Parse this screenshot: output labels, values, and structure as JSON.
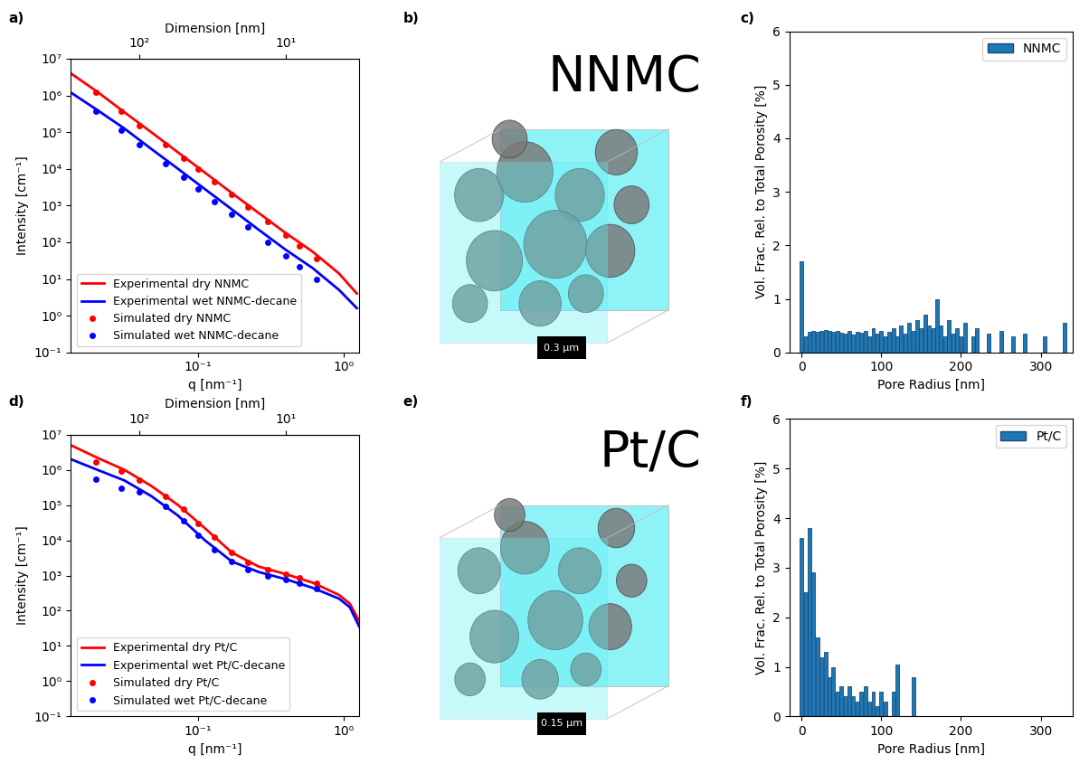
{
  "chart_data": [
    {
      "panel_label": "a)",
      "type": "line",
      "log": true,
      "xlabel": "q [nm⁻¹]",
      "ylabel": "Intensity [cm⁻¹]",
      "xlim": [
        0.0135,
        1.28
      ],
      "ylim": [
        0.1,
        10000000
      ],
      "xticks": [
        {
          "value": 0.1,
          "label": "10⁻¹"
        },
        {
          "value": 1,
          "label": "10⁰"
        }
      ],
      "yticks": [
        {
          "value": 0.1,
          "label": "10⁻¹"
        },
        {
          "value": 1,
          "label": "10⁰"
        },
        {
          "value": 10,
          "label": "10¹"
        },
        {
          "value": 100,
          "label": "10²"
        },
        {
          "value": 1000,
          "label": "10³"
        },
        {
          "value": 10000,
          "label": "10⁴"
        },
        {
          "value": 100000,
          "label": "10⁵"
        },
        {
          "value": 1000000,
          "label": "10⁶"
        },
        {
          "value": 10000000,
          "label": "10⁷"
        }
      ],
      "top_axis": {
        "label": "Dimension [nm]",
        "q_times_dimension": 4.0,
        "ticks": [
          {
            "value": 100,
            "label": "10²"
          },
          {
            "value": 10,
            "label": "10¹"
          }
        ]
      },
      "legend": "lower left",
      "series": [
        {
          "name": "Experimental dry NNMC",
          "type": "line",
          "color": "red",
          "x": [
            0.0135,
            0.0205,
            0.0314,
            0.048,
            0.0733,
            0.112,
            0.171,
            0.261,
            0.399,
            0.61,
            0.93,
            1.23
          ],
          "values": [
            4000000,
            1260000,
            350000,
            100000,
            28000,
            7900,
            2200,
            630,
            180,
            56,
            14,
            4.0
          ]
        },
        {
          "name": "Experimental wet NNMC-decane",
          "type": "line",
          "color": "blue",
          "x": [
            0.0135,
            0.0205,
            0.0314,
            0.048,
            0.0733,
            0.112,
            0.171,
            0.261,
            0.399,
            0.61,
            0.93,
            1.23
          ],
          "values": [
            1200000,
            400000,
            126000,
            35000,
            10000,
            2800,
            790,
            220,
            63,
            20,
            5.0,
            1.6
          ]
        },
        {
          "name": "Simulated dry NNMC",
          "type": "scatter",
          "color": "red",
          "marker": "o",
          "x": [
            0.02,
            0.03,
            0.04,
            0.06,
            0.08,
            0.1,
            0.13,
            0.17,
            0.22,
            0.3,
            0.4,
            0.5,
            0.65
          ],
          "values": [
            1230000,
            370000,
            150000,
            46000,
            19000,
            9800,
            4500,
            2000,
            920,
            365,
            154,
            79,
            36
          ]
        },
        {
          "name": "Simulated wet NNMC-decane",
          "type": "scatter",
          "color": "blue",
          "marker": "o",
          "x": [
            0.02,
            0.03,
            0.04,
            0.06,
            0.08,
            0.1,
            0.13,
            0.17,
            0.22,
            0.3,
            0.4,
            0.5,
            0.65
          ],
          "values": [
            370000,
            115000,
            46000,
            14000,
            5800,
            2900,
            1300,
            580,
            260,
            100,
            42,
            21,
            9.5
          ]
        }
      ]
    },
    {
      "panel_label": "b)",
      "type": "render",
      "title": "NNMC",
      "scale_bar": "0.3 µm"
    },
    {
      "panel_label": "c)",
      "type": "bar",
      "xlabel": "Pore Radius [nm]",
      "ylabel": "Vol. Frac. Rel. to Total Porosity [%]",
      "xlim": [
        -15,
        340
      ],
      "ylim": [
        0,
        6
      ],
      "xticks": [
        0,
        100,
        200,
        300
      ],
      "yticks": [
        0,
        1,
        2,
        3,
        4,
        5,
        6
      ],
      "legend": "upper right",
      "series": [
        {
          "name": "NNMC",
          "color": "#1f77b4",
          "x": [
            0,
            5,
            10,
            15,
            20,
            25,
            30,
            35,
            40,
            45,
            50,
            55,
            60,
            65,
            70,
            75,
            80,
            85,
            90,
            95,
            100,
            105,
            110,
            115,
            120,
            125,
            130,
            135,
            140,
            145,
            150,
            155,
            160,
            165,
            170,
            175,
            180,
            185,
            190,
            195,
            200,
            205,
            210,
            215,
            220,
            225,
            230,
            235,
            240,
            245,
            250,
            255,
            260,
            265,
            270,
            275,
            280,
            285,
            290,
            295,
            300,
            305,
            310,
            315,
            320,
            325,
            330,
            335
          ],
          "values": [
            1.7,
            0.3,
            0.38,
            0.4,
            0.38,
            0.4,
            0.42,
            0.4,
            0.38,
            0.4,
            0.37,
            0.35,
            0.4,
            0.33,
            0.38,
            0.36,
            0.4,
            0.3,
            0.45,
            0.35,
            0.4,
            0.3,
            0.38,
            0.45,
            0.3,
            0.5,
            0.35,
            0.55,
            0.4,
            0.6,
            0.45,
            0.7,
            0.5,
            0.45,
            1.0,
            0.5,
            0.3,
            0.6,
            0.35,
            0.45,
            0.3,
            0.55,
            0,
            0.3,
            0.45,
            0,
            0,
            0.35,
            0,
            0,
            0.4,
            0,
            0,
            0.3,
            0,
            0,
            0.35,
            0,
            0,
            0,
            0,
            0.3,
            0,
            0,
            0,
            0,
            0.55,
            0
          ]
        }
      ]
    },
    {
      "panel_label": "d)",
      "type": "line",
      "log": true,
      "xlabel": "q [nm⁻¹]",
      "ylabel": "Intensity [cm⁻¹]",
      "xlim": [
        0.0135,
        1.28
      ],
      "ylim": [
        0.1,
        10000000
      ],
      "xticks": [
        {
          "value": 0.1,
          "label": "10⁻¹"
        },
        {
          "value": 1,
          "label": "10⁰"
        }
      ],
      "yticks": [
        {
          "value": 0.1,
          "label": "10⁻¹"
        },
        {
          "value": 1,
          "label": "10⁰"
        },
        {
          "value": 10,
          "label": "10¹"
        },
        {
          "value": 100,
          "label": "10²"
        },
        {
          "value": 1000,
          "label": "10³"
        },
        {
          "value": 10000,
          "label": "10⁴"
        },
        {
          "value": 100000,
          "label": "10⁵"
        },
        {
          "value": 1000000,
          "label": "10⁶"
        },
        {
          "value": 10000000,
          "label": "10⁷"
        }
      ],
      "top_axis": {
        "label": "Dimension [nm]",
        "q_times_dimension": 4.0,
        "ticks": [
          {
            "value": 100,
            "label": "10²"
          },
          {
            "value": 10,
            "label": "10¹"
          }
        ]
      },
      "legend": "lower left",
      "series": [
        {
          "name": "Experimental dry Pt/C",
          "type": "line",
          "color": "red",
          "x": [
            0.0135,
            0.0205,
            0.0314,
            0.048,
            0.0733,
            0.112,
            0.171,
            0.261,
            0.399,
            0.61,
            0.93,
            1.1,
            1.28
          ],
          "values": [
            5000000,
            2200000,
            1000000,
            350000,
            100000,
            22000,
            4500,
            1800,
            1100,
            630,
            280,
            160,
            50
          ]
        },
        {
          "name": "Experimental wet Pt/C-decane",
          "type": "line",
          "color": "blue",
          "x": [
            0.0135,
            0.0205,
            0.0314,
            0.048,
            0.0733,
            0.112,
            0.171,
            0.261,
            0.399,
            0.61,
            0.93,
            1.1,
            1.28
          ],
          "values": [
            2000000,
            1000000,
            500000,
            180000,
            50000,
            10000,
            2500,
            1260,
            790,
            450,
            220,
            126,
            35
          ]
        },
        {
          "name": "Simulated dry Pt/C",
          "type": "scatter",
          "color": "red",
          "marker": "o",
          "x": [
            0.02,
            0.03,
            0.04,
            0.06,
            0.08,
            0.1,
            0.13,
            0.17,
            0.22,
            0.3,
            0.4,
            0.5,
            0.65
          ],
          "values": [
            1700000,
            900000,
            520000,
            180000,
            75000,
            30000,
            12000,
            4500,
            2400,
            1500,
            1100,
            850,
            600
          ]
        },
        {
          "name": "Simulated wet Pt/C-decane",
          "type": "scatter",
          "color": "blue",
          "marker": "o",
          "x": [
            0.02,
            0.03,
            0.04,
            0.06,
            0.08,
            0.1,
            0.13,
            0.17,
            0.22,
            0.3,
            0.4,
            0.5,
            0.65
          ],
          "values": [
            550000,
            300000,
            230000,
            90000,
            35000,
            14000,
            5500,
            2500,
            1500,
            1000,
            780,
            600,
            420
          ]
        }
      ]
    },
    {
      "panel_label": "e)",
      "type": "render",
      "title": "Pt/C",
      "scale_bar": "0.15 µm"
    },
    {
      "panel_label": "f)",
      "type": "bar",
      "xlabel": "Pore Radius [nm]",
      "ylabel": "Vol. Frac. Rel. to Total Porosity [%]",
      "xlim": [
        -15,
        340
      ],
      "ylim": [
        0,
        6
      ],
      "xticks": [
        0,
        100,
        200,
        300
      ],
      "yticks": [
        0,
        1,
        2,
        3,
        4,
        5,
        6
      ],
      "legend": "upper right",
      "series": [
        {
          "name": "Pt/C",
          "color": "#1f77b4",
          "x": [
            0,
            5,
            10,
            15,
            20,
            25,
            30,
            35,
            40,
            45,
            50,
            55,
            60,
            65,
            70,
            75,
            80,
            85,
            90,
            95,
            100,
            105,
            110,
            115,
            120,
            125,
            130,
            135,
            140
          ],
          "values": [
            3.6,
            2.5,
            3.8,
            2.9,
            1.6,
            1.2,
            1.3,
            0.8,
            1.0,
            0.5,
            0.6,
            0.4,
            0.6,
            0.4,
            0.3,
            0.5,
            0.6,
            0.3,
            0.5,
            0.2,
            0.5,
            0.3,
            0,
            0.5,
            1.05,
            0,
            0,
            0,
            0.8
          ]
        }
      ]
    }
  ]
}
